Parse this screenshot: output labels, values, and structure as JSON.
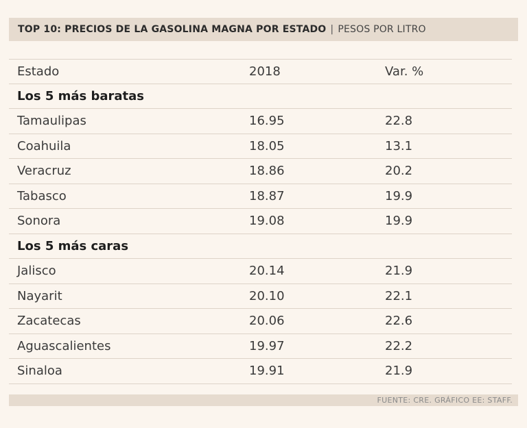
{
  "title": {
    "main": "TOP 10: PRECIOS DE LA GASOLINA MAGNA POR ESTADO",
    "separator": "|",
    "subtitle": "PESOS POR LITRO"
  },
  "headers": {
    "state": "Estado",
    "year": "2018",
    "var": "Var. %"
  },
  "groups": [
    {
      "label": "Los 5 más baratas",
      "rows": [
        {
          "state": "Tamaulipas",
          "price": "16.95",
          "var": "22.8"
        },
        {
          "state": "Coahuila",
          "price": "18.05",
          "var": "13.1"
        },
        {
          "state": "Veracruz",
          "price": "18.86",
          "var": "20.2"
        },
        {
          "state": "Tabasco",
          "price": "18.87",
          "var": "19.9"
        },
        {
          "state": "Sonora",
          "price": "19.08",
          "var": "19.9"
        }
      ]
    },
    {
      "label": "Los 5 más caras",
      "rows": [
        {
          "state": "Jalisco",
          "price": "20.14",
          "var": "21.9"
        },
        {
          "state": "Nayarit",
          "price": "20.10",
          "var": "22.1"
        },
        {
          "state": "Zacatecas",
          "price": "20.06",
          "var": "22.6"
        },
        {
          "state": "Aguascalientes",
          "price": "19.97",
          "var": "22.2"
        },
        {
          "state": "Sinaloa",
          "price": "19.91",
          "var": "21.9"
        }
      ]
    }
  ],
  "footer": "FUENTE: CRE. GRÁFICO EE: STAFF."
}
